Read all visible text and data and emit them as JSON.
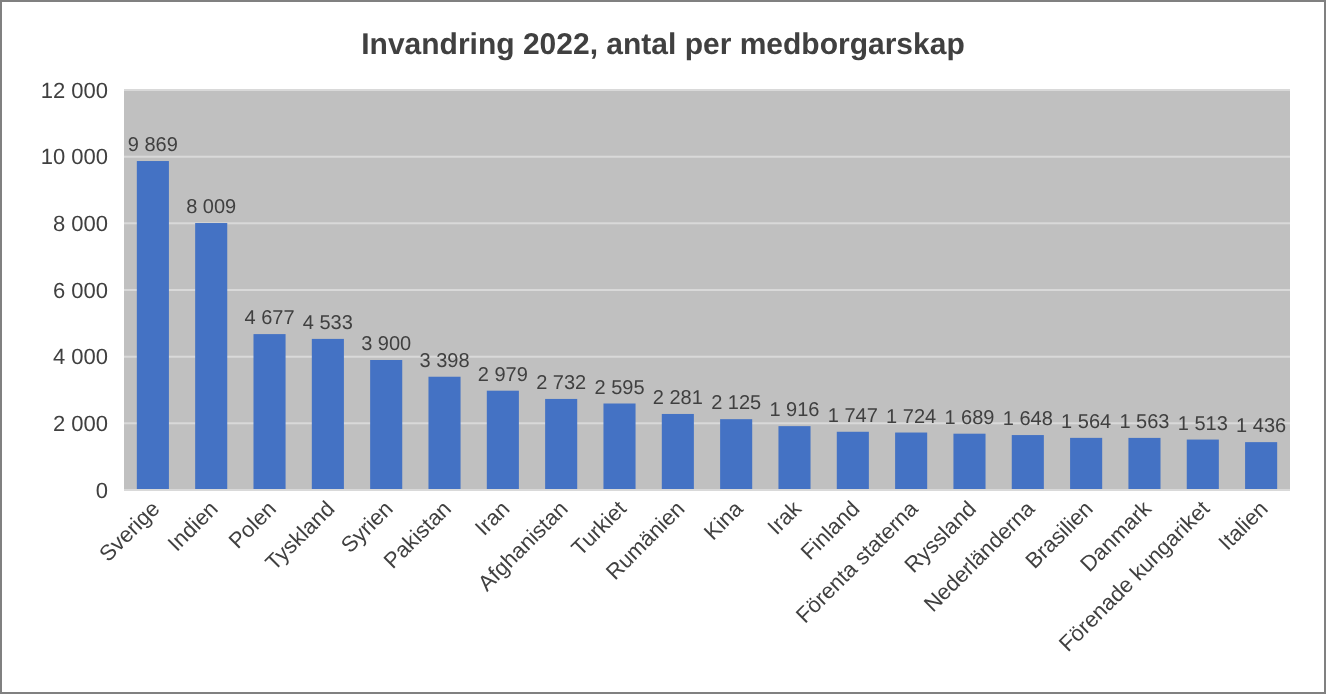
{
  "chart_data": {
    "type": "bar",
    "title": "Invandring 2022, antal per medborgarskap",
    "categories": [
      "Sverige",
      "Indien",
      "Polen",
      "Tyskland",
      "Syrien",
      "Pakistan",
      "Iran",
      "Afghanistan",
      "Turkiet",
      "Rumänien",
      "Kina",
      "Irak",
      "Finland",
      "Förenta staterna",
      "Ryssland",
      "Nederländerna",
      "Brasilien",
      "Danmark",
      "Förenade kungariket",
      "Italien"
    ],
    "values": [
      9869,
      8009,
      4677,
      4533,
      3900,
      3398,
      2979,
      2732,
      2595,
      2281,
      2125,
      1916,
      1747,
      1724,
      1689,
      1648,
      1564,
      1563,
      1513,
      1436
    ],
    "value_labels": [
      "9 869",
      "8 009",
      "4 677",
      "4 533",
      "3 900",
      "3 398",
      "2 979",
      "2 732",
      "2 595",
      "2 281",
      "2 125",
      "1 916",
      "1 747",
      "1 724",
      "1 689",
      "1 648",
      "1 564",
      "1 563",
      "1 513",
      "1 436"
    ],
    "color": "#4472c4",
    "ylim": [
      0,
      12000
    ],
    "yticks": [
      0,
      {
        "value": 2000,
        "label": "2 000"
      },
      {
        "value": 4000,
        "label": "4 000"
      },
      {
        "value": 6000,
        "label": "6 000"
      },
      {
        "value": 8000,
        "label": "8 000"
      },
      {
        "value": 10000,
        "label": "10 000"
      },
      {
        "value": 12000,
        "label": "12 000"
      }
    ],
    "grid": "y"
  }
}
